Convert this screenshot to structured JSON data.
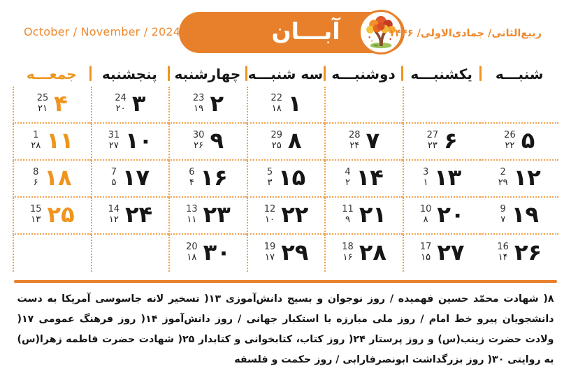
{
  "header": {
    "gregorian_label": "October / November / 2024",
    "month_name": "آبـــان",
    "hijri_label": "ربیع‌الثانی/ جمادی‌الاولی/ ۱۴۴۶"
  },
  "weekdays": [
    {
      "label": "شنبـــه",
      "holiday": false
    },
    {
      "label": "یکشنبـــه",
      "holiday": false
    },
    {
      "label": "دوشنبـــه",
      "holiday": false
    },
    {
      "label": "سه شنبـــه",
      "holiday": false
    },
    {
      "label": "چهارشنبه",
      "holiday": false
    },
    {
      "label": "پنجشنبه",
      "holiday": false
    },
    {
      "label": "جمعـــه",
      "holiday": true
    }
  ],
  "grid": {
    "rows": [
      [
        null,
        null,
        null,
        {
          "day": "۱",
          "greg": "22",
          "hijri": "۱۸"
        },
        {
          "day": "۲",
          "greg": "23",
          "hijri": "۱۹"
        },
        {
          "day": "۳",
          "greg": "24",
          "hijri": "۲۰"
        },
        {
          "day": "۴",
          "greg": "25",
          "hijri": "۲۱"
        }
      ],
      [
        {
          "day": "۵",
          "greg": "26",
          "hijri": "۲۲"
        },
        {
          "day": "۶",
          "greg": "27",
          "hijri": "۲۳"
        },
        {
          "day": "۷",
          "greg": "28",
          "hijri": "۲۴"
        },
        {
          "day": "۸",
          "greg": "29",
          "hijri": "۲۵"
        },
        {
          "day": "۹",
          "greg": "30",
          "hijri": "۲۶"
        },
        {
          "day": "۱۰",
          "greg": "31",
          "hijri": "۲۷"
        },
        {
          "day": "۱۱",
          "greg": "1",
          "hijri": "۲۸"
        }
      ],
      [
        {
          "day": "۱۲",
          "greg": "2",
          "hijri": "۲۹"
        },
        {
          "day": "۱۳",
          "greg": "3",
          "hijri": "۱"
        },
        {
          "day": "۱۴",
          "greg": "4",
          "hijri": "۲"
        },
        {
          "day": "۱۵",
          "greg": "5",
          "hijri": "۳"
        },
        {
          "day": "۱۶",
          "greg": "6",
          "hijri": "۴"
        },
        {
          "day": "۱۷",
          "greg": "7",
          "hijri": "۵"
        },
        {
          "day": "۱۸",
          "greg": "8",
          "hijri": "۶"
        }
      ],
      [
        {
          "day": "۱۹",
          "greg": "9",
          "hijri": "۷"
        },
        {
          "day": "۲۰",
          "greg": "10",
          "hijri": "۸"
        },
        {
          "day": "۲۱",
          "greg": "11",
          "hijri": "۹"
        },
        {
          "day": "۲۲",
          "greg": "12",
          "hijri": "۱۰"
        },
        {
          "day": "۲۳",
          "greg": "13",
          "hijri": "۱۱"
        },
        {
          "day": "۲۴",
          "greg": "14",
          "hijri": "۱۲"
        },
        {
          "day": "۲۵",
          "greg": "15",
          "hijri": "۱۳"
        }
      ],
      [
        {
          "day": "۲۶",
          "greg": "16",
          "hijri": "۱۴"
        },
        {
          "day": "۲۷",
          "greg": "17",
          "hijri": "۱۵"
        },
        {
          "day": "۲۸",
          "greg": "18",
          "hijri": "۱۶"
        },
        {
          "day": "۲۹",
          "greg": "19",
          "hijri": "۱۷"
        },
        {
          "day": "۳۰",
          "greg": "20",
          "hijri": "۱۸"
        },
        null,
        null
      ]
    ]
  },
  "footer": {
    "events_text": "۸( شهادت محمّد حسین فهمیده / روز نوجوان و بسیج دانش‌آموزی ۱۳( تسخیر لانه جاسوسی آمریکا به دست دانشجویان پیرو خط امام / روز ملی مبارزه با استکبار جهانی / روز دانش‌آموز ۱۴( روز فرهنگ عمومی ۱۷( ولادت حضرت زینب(س) و روز پرستار ۲۴( روز کتاب، کتابخوانی و کتابدار ۲۵( شهادت حضرت فاطمه زهرا(س) به روایتی ۳۰( روز بزرگداشت ابونصرفارابی / روز حکمت و فلسفه"
  },
  "colors": {
    "accent_orange": "#e8802b",
    "text_orange": "#ee8a30",
    "friday_orange": "#f0941e",
    "dotted_line": "#f1a34e",
    "day_number": "#161616"
  }
}
